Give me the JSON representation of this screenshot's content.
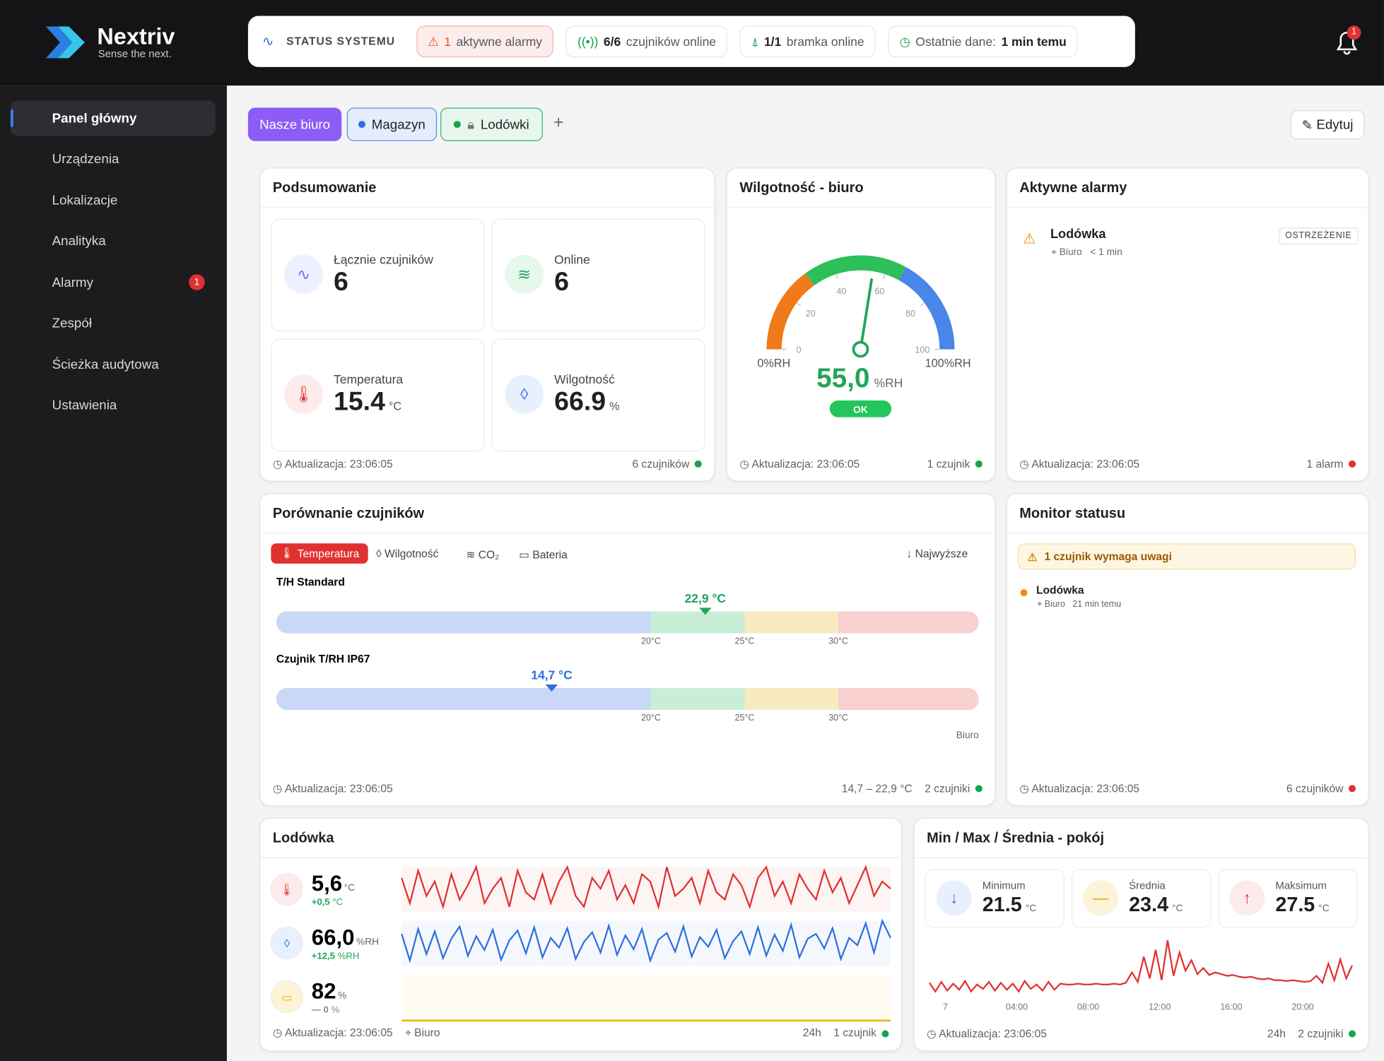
{
  "header": {
    "brand": "Nextriv",
    "tagline": "Sense the next.",
    "status_title": "STATUS SYSTEMU",
    "alarm_count": "1",
    "alarm_text": "aktywne alarmy",
    "sensors_count": "6/6",
    "sensors_text": "czujników online",
    "gateway_count": "1/1",
    "gateway_text": "bramka online",
    "last_data_label": "Ostatnie dane:",
    "last_data_value": "1 min temu",
    "bell_badge": "1"
  },
  "sidebar": {
    "items": [
      "Panel główny",
      "Urządzenia",
      "Lokalizacje",
      "Analityka",
      "Alarmy",
      "Zespół",
      "Ścieżka audytowa",
      "Ustawienia"
    ],
    "alarm_badge": "1"
  },
  "tabs": [
    "Nasze biuro",
    "Magazyn",
    "Lodówki"
  ],
  "add_tab": "+",
  "edit_button": "Edytuj",
  "summary": {
    "title": "Podsumowanie",
    "tiles": [
      {
        "label": "Łącznie czujników",
        "value": "6"
      },
      {
        "label": "Online",
        "value": "6"
      },
      {
        "label": "Temperatura",
        "value": "15.4",
        "unit": "°C"
      },
      {
        "label": "Wilgotność",
        "value": "66.9",
        "unit": "%"
      }
    ],
    "updated": "Aktualizacja: 23:06:05",
    "sensors": "6 czujników"
  },
  "humidity": {
    "title": "Wilgotność - biuro",
    "gauge": {
      "min_label": "0%RH",
      "max_label": "100%RH",
      "lim": [
        0,
        100
      ],
      "ticks": [
        0,
        20,
        40,
        60,
        80,
        100
      ],
      "value": 55,
      "value_label": "55,0",
      "unit": "%RH",
      "status": "OK"
    },
    "updated": "Aktualizacja: 23:06:05",
    "sensors": "1 czujnik"
  },
  "alarms": {
    "title": "Aktywne alarmy",
    "items": [
      {
        "name": "Lodówka",
        "location": "Biuro",
        "time": "< 1 min",
        "level": "OSTRZEŻENIE"
      }
    ],
    "updated": "Aktualizacja: 23:06:05",
    "count": "1 alarm"
  },
  "comparison": {
    "title": "Porównanie czujników",
    "metrics": [
      "Temperatura",
      "Wilgotność",
      "CO₂",
      "Bateria"
    ],
    "sort": "Najwyższe",
    "scale": {
      "lim": [
        0,
        37.5
      ],
      "ticks": [
        {
          "value": 20,
          "label": "20°C"
        },
        {
          "value": 25,
          "label": "25°C"
        },
        {
          "value": 30,
          "label": "30°C"
        }
      ]
    },
    "sensors": [
      {
        "name": "T/H Standard",
        "value": 22.9,
        "value_label": "22,9 °C"
      },
      {
        "name": "Czujnik T/RH IP67",
        "value": 14.7,
        "value_label": "14,7 °C",
        "location": "Biuro"
      }
    ],
    "updated": "Aktualizacja: 23:06:05",
    "range": "14,7 – 22,9 °C",
    "sensors_count": "2 czujniki"
  },
  "status_monitor": {
    "title": "Monitor statusu",
    "warning": "1 czujnik wymaga uwagi",
    "items": [
      {
        "name": "Lodówka",
        "location": "Biuro",
        "time": "21 min temu"
      }
    ],
    "updated": "Aktualizacja: 23:06:05",
    "sensors": "6 czujników"
  },
  "fridge": {
    "title": "Lodówka",
    "metrics": [
      {
        "value": "5,6",
        "unit": "°C",
        "delta": "+0,5",
        "delta_unit": "°C",
        "color": "#e03131",
        "series": [
          5.9,
          5.2,
          6.1,
          5.4,
          5.8,
          5.1,
          6.0,
          5.3,
          5.7,
          6.2,
          5.2,
          5.6,
          5.9,
          5.1,
          6.1,
          5.5,
          5.3,
          6.0,
          5.2,
          5.8,
          6.2,
          5.4,
          5.1,
          5.9,
          5.6,
          6.1,
          5.3,
          5.7,
          5.2,
          6.0,
          5.8,
          5.1,
          6.2,
          5.4,
          5.6,
          5.9,
          5.2,
          6.1,
          5.5,
          5.3,
          6.0,
          5.7,
          5.1,
          5.9,
          6.2,
          5.4,
          5.8,
          5.2,
          6.0,
          5.6,
          5.3,
          6.1,
          5.5,
          5.9,
          5.2,
          5.7,
          6.2,
          5.4,
          5.8,
          5.6
        ]
      },
      {
        "value": "66,0",
        "unit": "%RH",
        "delta": "+12,5",
        "delta_unit": "%RH",
        "color": "#2f6fdc",
        "series": [
          66.5,
          63.2,
          67.1,
          64.0,
          66.8,
          63.5,
          65.9,
          67.4,
          63.8,
          66.2,
          64.5,
          67.0,
          63.3,
          65.7,
          66.9,
          64.1,
          67.3,
          63.6,
          66.0,
          64.8,
          67.2,
          63.4,
          65.5,
          66.7,
          64.2,
          67.5,
          63.9,
          66.3,
          64.6,
          67.1,
          63.2,
          65.8,
          66.6,
          64.3,
          67.4,
          63.7,
          66.1,
          64.9,
          67.0,
          63.5,
          65.6,
          66.8,
          64.0,
          67.3,
          63.8,
          66.4,
          64.4,
          67.6,
          63.6,
          65.9,
          66.5,
          64.7,
          67.2,
          63.4,
          66.0,
          65.1,
          67.8,
          64.2,
          68.1,
          66.0
        ]
      },
      {
        "value": "82",
        "unit": "%",
        "delta": "— 0",
        "delta_unit": "%",
        "color": "#f0b400",
        "series": [
          82,
          82
        ]
      }
    ],
    "updated": "Aktualizacja: 23:06:05",
    "location": "Biuro",
    "period": "24h",
    "sensors": "1 czujnik"
  },
  "minmax": {
    "title": "Min / Max / Średnia - pokój",
    "stats": [
      {
        "label": "Minimum",
        "value": "21.5",
        "unit": "°C"
      },
      {
        "label": "Średnia",
        "value": "23.4",
        "unit": "°C"
      },
      {
        "label": "Maksimum",
        "value": "27.5",
        "unit": "°C"
      }
    ],
    "chart": {
      "color": "#e03131",
      "xticks": [
        "7",
        "04:00",
        "08:00",
        "12:00",
        "16:00",
        "20:00"
      ],
      "values": [
        22.6,
        21.6,
        22.7,
        21.7,
        22.5,
        21.8,
        22.8,
        21.6,
        22.4,
        21.9,
        22.7,
        21.7,
        22.6,
        21.8,
        22.5,
        21.6,
        22.8,
        21.9,
        22.4,
        21.7,
        22.7,
        21.8,
        22.5,
        22.4,
        22.4,
        22.5,
        22.4,
        22.4,
        22.5,
        22.4,
        22.4,
        22.5,
        22.4,
        22.6,
        23.8,
        22.7,
        25.6,
        23.1,
        26.4,
        22.9,
        27.5,
        23.4,
        26.1,
        24.0,
        25.2,
        23.6,
        24.3,
        23.5,
        23.8,
        23.6,
        23.4,
        23.5,
        23.3,
        23.2,
        23.3,
        23.1,
        23.0,
        23.1,
        22.9,
        22.9,
        22.8,
        22.9,
        22.8,
        22.7,
        22.8,
        23.4,
        22.6,
        24.8,
        22.9,
        25.3,
        23.1,
        24.6
      ]
    },
    "updated": "Aktualizacja: 23:06:05",
    "period": "24h",
    "sensors": "2 czujniki"
  }
}
